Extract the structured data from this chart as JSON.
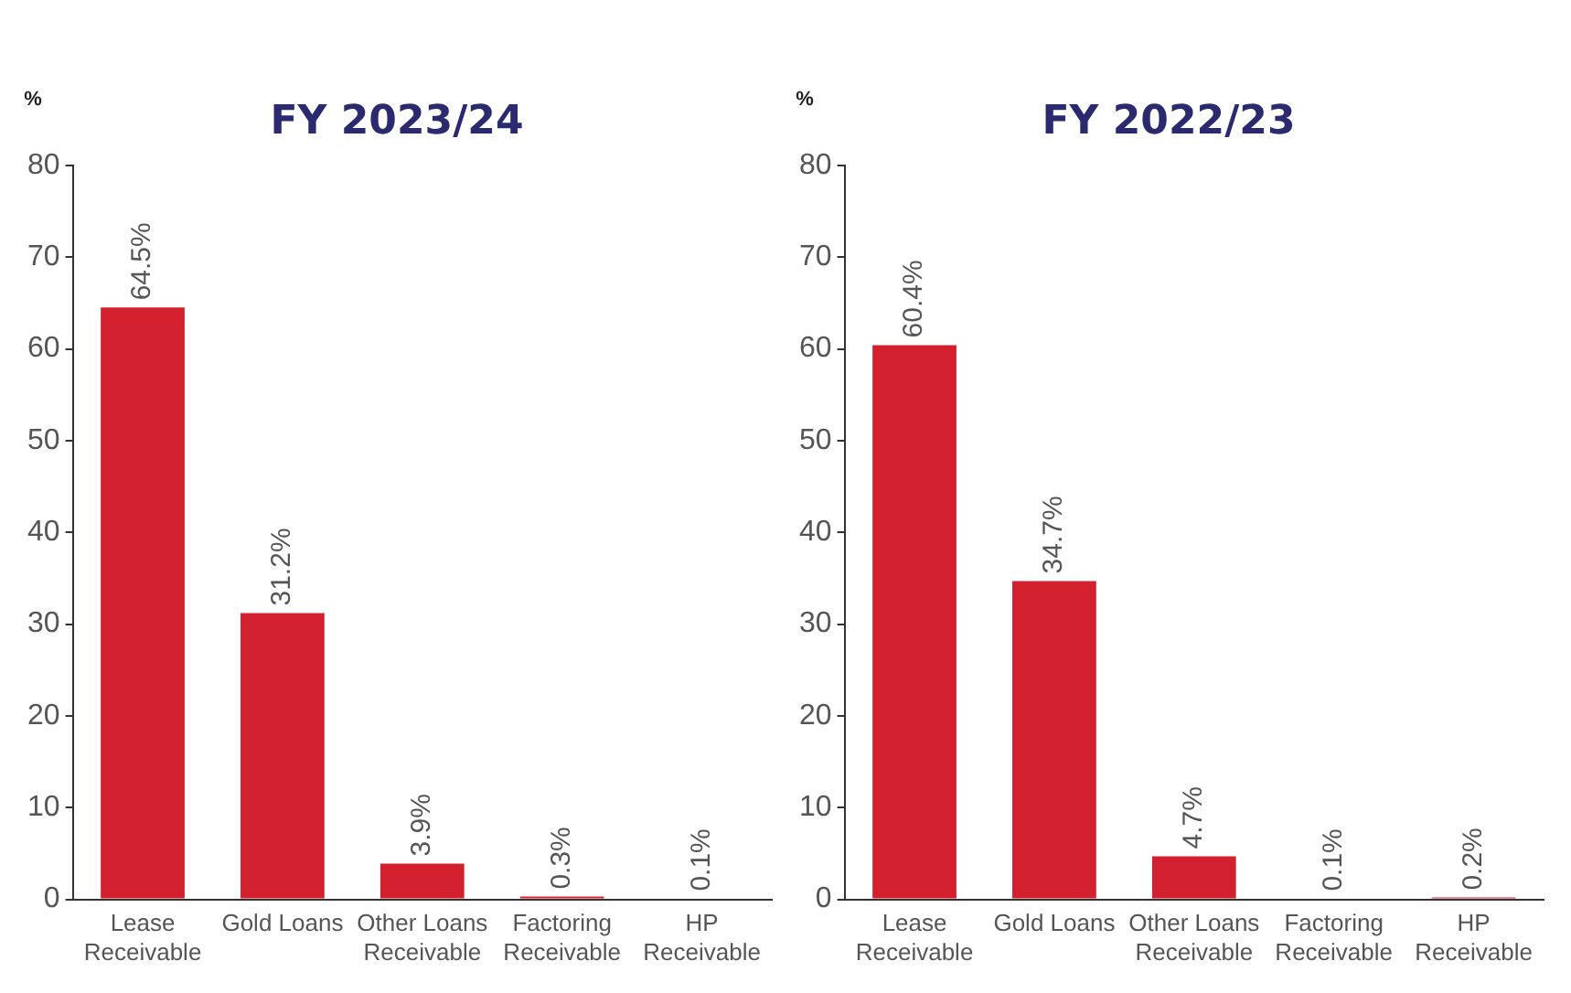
{
  "chart_data": [
    {
      "type": "bar",
      "title": "FY 2023/24",
      "ylabel": "%",
      "categories": [
        "Lease Receivable",
        "Gold Loans",
        "Other Loans Receivable",
        "Factoring Receivable",
        "HP Receivable"
      ],
      "values": [
        64.5,
        31.2,
        3.9,
        0.3,
        0.1
      ],
      "value_labels": [
        "64.5%",
        "31.2%",
        "3.9%",
        "0.3%",
        "0.1%"
      ],
      "color": "#d2202f",
      "ylim": [
        0,
        80
      ],
      "yticks": [
        0,
        10,
        20,
        30,
        40,
        50,
        60,
        70,
        80
      ],
      "grid": false,
      "legend": false
    },
    {
      "type": "bar",
      "title": "FY 2022/23",
      "ylabel": "%",
      "categories": [
        "Lease Receivable",
        "Gold Loans",
        "Other Loans Receivable",
        "Factoring Receivable",
        "HP Receivable"
      ],
      "values": [
        60.4,
        34.7,
        4.7,
        0.1,
        0.2
      ],
      "value_labels": [
        "60.4%",
        "34.7%",
        "4.7%",
        "0.1%",
        "0.2%"
      ],
      "color": "#d2202f",
      "ylim": [
        0,
        80
      ],
      "yticks": [
        0,
        10,
        20,
        30,
        40,
        50,
        60,
        70,
        80
      ],
      "grid": false,
      "legend": false
    }
  ]
}
